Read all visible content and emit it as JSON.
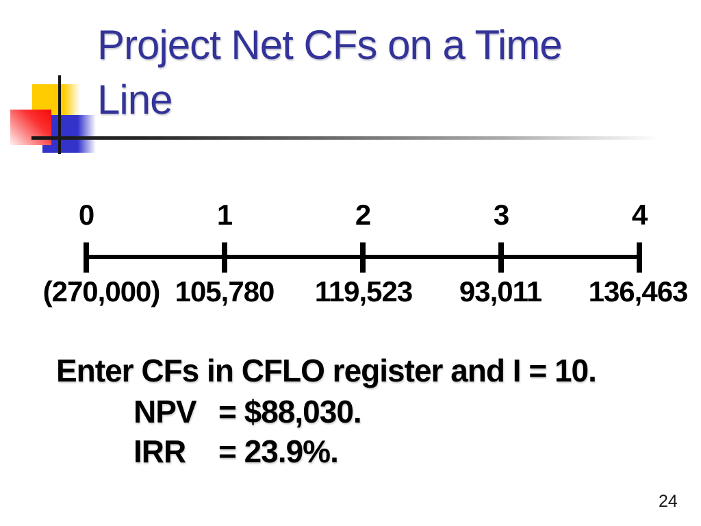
{
  "slide": {
    "title": "Project Net CFs on a Time Line",
    "page_number": "24"
  },
  "timeline": {
    "periods": [
      {
        "label": "0",
        "cash_flow": "(270,000)"
      },
      {
        "label": "1",
        "cash_flow": "105,780"
      },
      {
        "label": "2",
        "cash_flow": "119,523"
      },
      {
        "label": "3",
        "cash_flow": "93,011"
      },
      {
        "label": "4",
        "cash_flow": "136,463"
      }
    ]
  },
  "notes": {
    "instruction": "Enter CFs in CFLO register and I = 10.",
    "results": [
      {
        "label": "NPV",
        "value": "= $88,030."
      },
      {
        "label": "IRR",
        "value": "= 23.9%."
      }
    ]
  },
  "colors": {
    "title_text": "#333399",
    "body_text": "#000000",
    "accent_yellow": "#FFCC00",
    "accent_red": "#F60909",
    "accent_blue": "#3333CC"
  }
}
